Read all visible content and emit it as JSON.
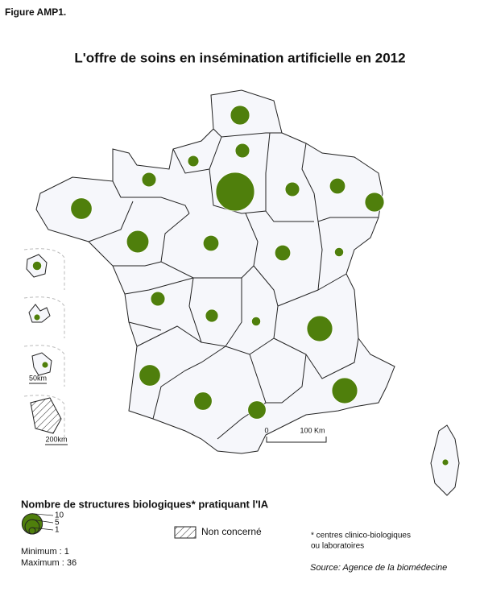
{
  "figure_label": "Figure AMP1.",
  "title": "L'offre de soins en insémination artificielle en 2012",
  "inset_scales": [
    "50km",
    "200km"
  ],
  "scale_bar": [
    "0",
    "100 Km"
  ],
  "legend": {
    "title": "Nombre de structures biologiques* pratiquant l'IA",
    "sizes": [
      10,
      5,
      1
    ],
    "not_concerned": "Non concerné",
    "minimum": "Minimum : 1",
    "maximum": "Maximum : 36"
  },
  "footnote": [
    "* centres clinico-biologiques",
    "ou laboratoires"
  ],
  "source": "Source: Agence de la biomédecine",
  "bubbles": {
    "color": "#4f7f0c",
    "values": [
      9,
      5,
      3,
      5,
      36,
      5,
      6,
      9,
      11,
      12,
      6,
      6,
      2,
      5,
      4,
      2,
      16,
      11,
      8,
      8,
      16,
      1,
      2,
      1,
      1
    ]
  }
}
